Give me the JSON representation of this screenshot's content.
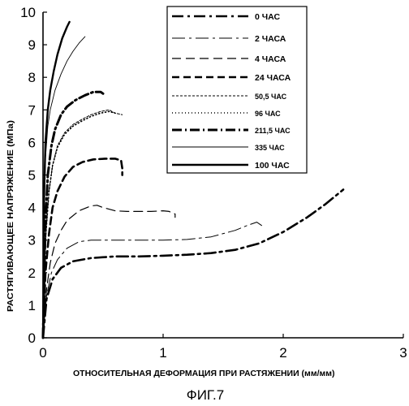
{
  "figure_caption": "ФИГ.7",
  "chart_data": {
    "type": "line",
    "xlabel": "ОТНОСИТЕЛЬНАЯ ДЕФОРМАЦИЯ ПРИ  РАСТЯЖЕНИИ (мм/мм)",
    "ylabel": "РАСТЯГИВАЮЩЕЕ НАПРЯЖЕНИЕ (МПа)",
    "xlim": [
      0,
      3
    ],
    "ylim": [
      0,
      10
    ],
    "xticks": [
      "0",
      "1",
      "2",
      "3"
    ],
    "yticks": [
      "0",
      "1",
      "2",
      "3",
      "4",
      "5",
      "6",
      "7",
      "8",
      "9",
      "10"
    ],
    "grid": false,
    "legend_position": "top-right",
    "series": [
      {
        "name": "0 ЧАС",
        "style": "dashdot-thick",
        "x": [
          0,
          0.03,
          0.08,
          0.15,
          0.25,
          0.4,
          0.6,
          0.8,
          1.0,
          1.2,
          1.4,
          1.6,
          1.8,
          2.0,
          2.2,
          2.35,
          2.5
        ],
        "y": [
          0,
          1.2,
          1.8,
          2.15,
          2.35,
          2.45,
          2.5,
          2.5,
          2.52,
          2.55,
          2.6,
          2.7,
          2.9,
          3.25,
          3.7,
          4.1,
          4.55
        ]
      },
      {
        "name": "2 ЧАСА",
        "style": "dashdot-thin",
        "x": [
          0,
          0.03,
          0.07,
          0.12,
          0.2,
          0.3,
          0.4,
          0.6,
          0.8,
          1.0,
          1.2,
          1.4,
          1.6,
          1.7,
          1.78,
          1.82
        ],
        "y": [
          0,
          1.3,
          2.0,
          2.4,
          2.75,
          2.95,
          3.0,
          3.0,
          3.0,
          3.0,
          3.02,
          3.1,
          3.3,
          3.45,
          3.55,
          3.45
        ]
      },
      {
        "name": "4 ЧАСА",
        "style": "dashed-medium",
        "x": [
          0,
          0.03,
          0.06,
          0.1,
          0.15,
          0.2,
          0.3,
          0.4,
          0.45,
          0.5,
          0.6,
          0.7,
          0.8,
          0.9,
          1.0,
          1.05,
          1.1,
          1.1
        ],
        "y": [
          0,
          1.5,
          2.3,
          2.9,
          3.3,
          3.6,
          3.9,
          4.05,
          4.07,
          4.0,
          3.9,
          3.88,
          3.88,
          3.88,
          3.9,
          3.88,
          3.8,
          3.7
        ]
      },
      {
        "name": "24 ЧАСА",
        "style": "dashed-thick",
        "x": [
          0,
          0.02,
          0.05,
          0.08,
          0.12,
          0.18,
          0.25,
          0.33,
          0.42,
          0.52,
          0.6,
          0.65,
          0.66,
          0.66
        ],
        "y": [
          0,
          2.0,
          3.2,
          4.0,
          4.5,
          4.95,
          5.25,
          5.4,
          5.48,
          5.5,
          5.5,
          5.45,
          5.2,
          5.0
        ]
      },
      {
        "name": "50,5 ЧАС",
        "style": "fine-dash",
        "x": [
          0,
          0.02,
          0.05,
          0.08,
          0.12,
          0.18,
          0.25,
          0.32,
          0.4,
          0.48,
          0.55,
          0.6,
          0.66
        ],
        "y": [
          0,
          3.0,
          4.5,
          5.3,
          5.9,
          6.3,
          6.55,
          6.7,
          6.85,
          6.95,
          7.0,
          6.9,
          6.85
        ]
      },
      {
        "name": "96 ЧАС",
        "style": "dotted",
        "x": [
          0,
          0.02,
          0.05,
          0.08,
          0.12,
          0.18,
          0.25,
          0.32,
          0.4,
          0.48,
          0.55,
          0.6
        ],
        "y": [
          0,
          3.0,
          4.5,
          5.3,
          5.85,
          6.25,
          6.5,
          6.65,
          6.8,
          6.9,
          6.95,
          6.9
        ]
      },
      {
        "name": "211,5 ЧАС",
        "style": "dashdot-heavy",
        "x": [
          0,
          0.02,
          0.04,
          0.07,
          0.1,
          0.15,
          0.2,
          0.27,
          0.35,
          0.42,
          0.48,
          0.5
        ],
        "y": [
          0,
          3.5,
          5.0,
          5.9,
          6.4,
          6.85,
          7.1,
          7.3,
          7.45,
          7.55,
          7.55,
          7.5
        ]
      },
      {
        "name": "335 ЧАС",
        "style": "solid-thin",
        "x": [
          0,
          0.01,
          0.02,
          0.04,
          0.06,
          0.1,
          0.15,
          0.2,
          0.25,
          0.3,
          0.35
        ],
        "y": [
          0,
          4.0,
          5.5,
          6.5,
          7.0,
          7.6,
          8.1,
          8.5,
          8.8,
          9.05,
          9.25
        ]
      },
      {
        "name": "100 ЧАС",
        "style": "solid-thick",
        "x": [
          0,
          0.01,
          0.02,
          0.04,
          0.06,
          0.09,
          0.12,
          0.16,
          0.2,
          0.22
        ],
        "y": [
          0,
          4.5,
          6.0,
          7.0,
          7.6,
          8.2,
          8.7,
          9.2,
          9.55,
          9.7
        ]
      }
    ]
  }
}
